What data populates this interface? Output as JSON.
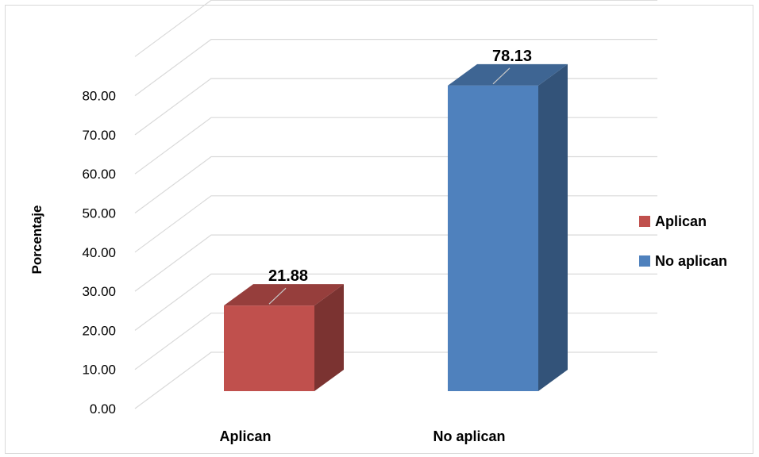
{
  "chart_data": {
    "type": "bar",
    "style": "3d-column",
    "categories": [
      "Aplican",
      "No aplican"
    ],
    "values": [
      21.88,
      78.13
    ],
    "data_labels": [
      "21.88",
      "78.13"
    ],
    "colors": [
      "#c0504d",
      "#4f81bd"
    ],
    "ylabel": "Porcentaje",
    "ylim": [
      0,
      80
    ],
    "yticks": [
      "0.00",
      "10.00",
      "20.00",
      "30.00",
      "40.00",
      "50.00",
      "60.00",
      "70.00",
      "80.00"
    ],
    "grid": true,
    "legend": {
      "position": "right",
      "entries": [
        {
          "label": "Aplican",
          "color": "#c0504d"
        },
        {
          "label": "No aplican",
          "color": "#4f81bd"
        }
      ]
    }
  }
}
